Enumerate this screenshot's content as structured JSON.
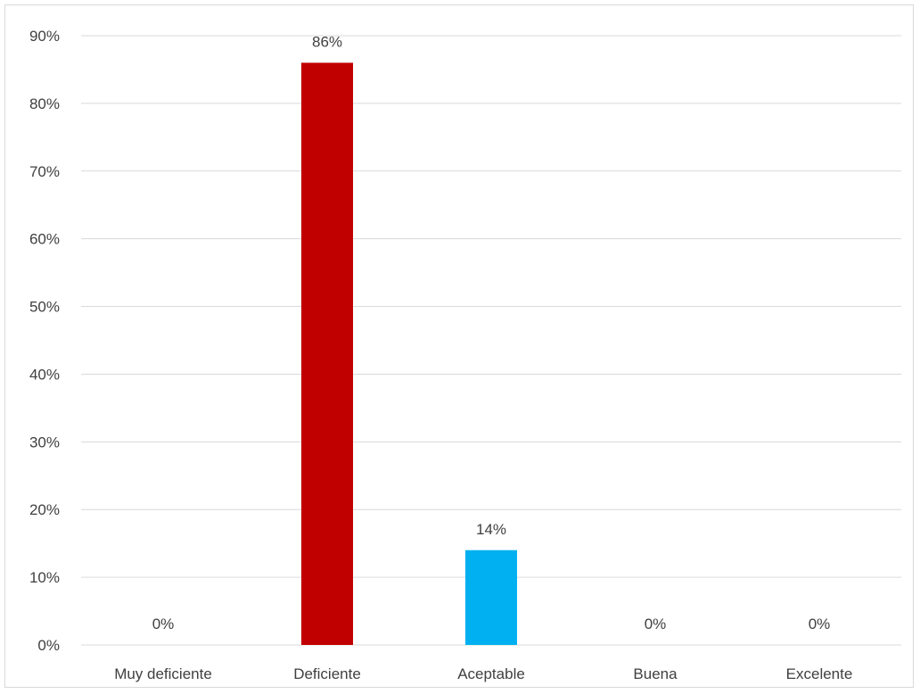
{
  "chart_data": {
    "type": "bar",
    "categories": [
      "Muy deficiente",
      "Deficiente",
      "Aceptable",
      "Buena",
      "Excelente"
    ],
    "values": [
      0,
      86,
      14,
      0,
      0
    ],
    "data_labels": [
      "0%",
      "86%",
      "14%",
      "0%",
      "0%"
    ],
    "bar_colors": [
      "#c00000",
      "#c00000",
      "#00b0f0",
      "#c00000",
      "#c00000"
    ],
    "ylim": [
      0,
      90
    ],
    "y_ticks": [
      0,
      10,
      20,
      30,
      40,
      50,
      60,
      70,
      80,
      90
    ],
    "y_tick_labels": [
      "0%",
      "10%",
      "20%",
      "30%",
      "40%",
      "50%",
      "60%",
      "70%",
      "80%",
      "90%"
    ],
    "grid": true,
    "legend": "none",
    "title": "",
    "xlabel": "",
    "ylabel": ""
  }
}
